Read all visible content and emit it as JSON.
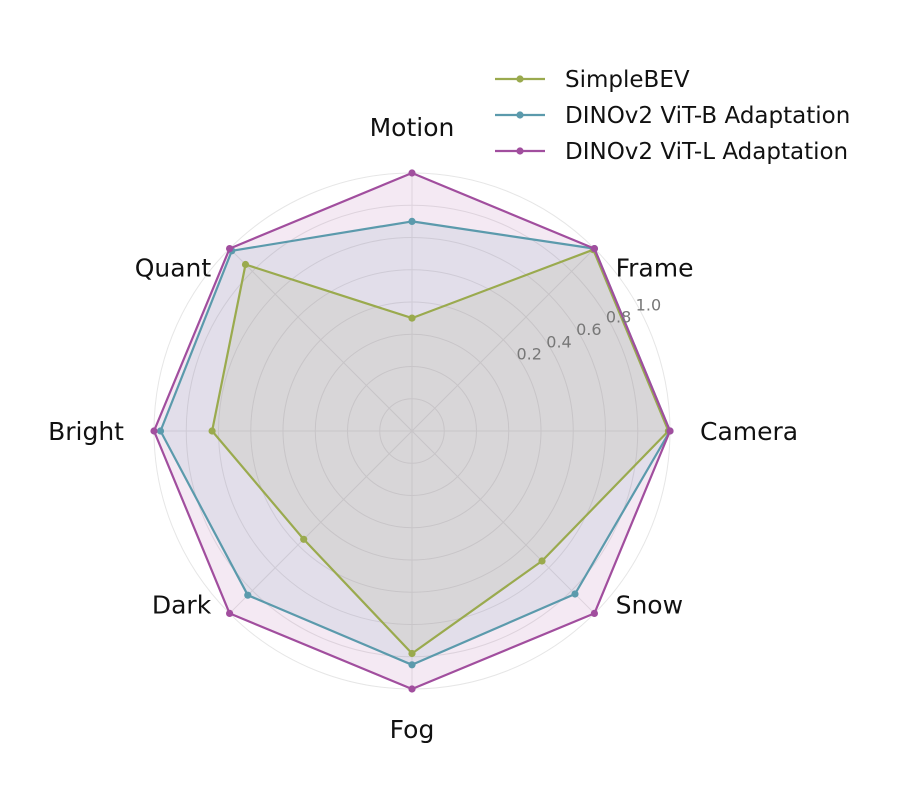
{
  "chart_data": {
    "type": "radar",
    "axes": [
      "Camera",
      "Frame",
      "Motion",
      "Quant",
      "Bright",
      "Dark",
      "Fog",
      "Snow"
    ],
    "rticks": [
      0.2,
      0.4,
      0.6,
      0.8,
      1.0
    ],
    "rtick_labels": [
      "0.2",
      "0.4",
      "0.6",
      "0.8",
      "1.0"
    ],
    "rmax": 1.0,
    "rmin": -0.6,
    "grid": true,
    "legend_position": "top-right",
    "series": [
      {
        "name": "SimpleBEV",
        "color": "#9aaa4e",
        "values": [
          0.99,
          0.99,
          0.1,
          0.86,
          0.64,
          0.35,
          0.78,
          0.54
        ]
      },
      {
        "name": "DINOv2 ViT-B Adaptation",
        "color": "#5b9aac",
        "values": [
          1.0,
          1.0,
          0.7,
          0.98,
          0.96,
          0.84,
          0.85,
          0.83
        ]
      },
      {
        "name": "DINOv2 ViT-L Adaptation",
        "color": "#a14e9e",
        "values": [
          1.0,
          1.0,
          1.0,
          1.0,
          1.0,
          1.0,
          1.0,
          1.0
        ]
      }
    ]
  }
}
